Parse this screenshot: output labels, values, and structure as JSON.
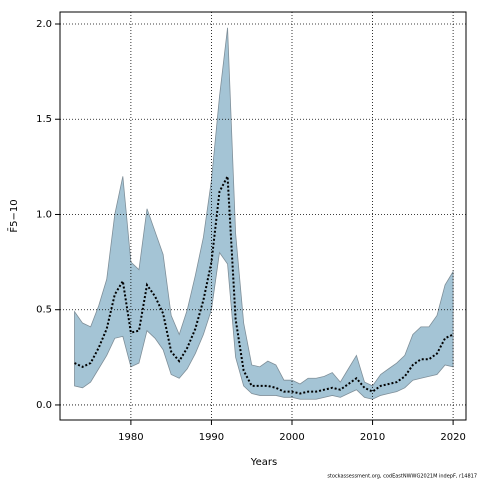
{
  "chart_data": {
    "type": "line",
    "x_label": "Years",
    "y_label": "F̄5−10",
    "footnote": "stockassessment.org, codEastNWWG2021M indepF, r14817",
    "x": [
      1973,
      1974,
      1975,
      1976,
      1977,
      1978,
      1979,
      1980,
      1981,
      1982,
      1983,
      1984,
      1985,
      1986,
      1987,
      1988,
      1989,
      1990,
      1991,
      1992,
      1993,
      1994,
      1995,
      1996,
      1997,
      1998,
      1999,
      2000,
      2001,
      2002,
      2003,
      2004,
      2005,
      2006,
      2007,
      2008,
      2009,
      2010,
      2011,
      2012,
      2013,
      2014,
      2015,
      2016,
      2017,
      2018,
      2019,
      2020
    ],
    "series": [
      {
        "color": "#000000",
        "values": [
          0.22,
          0.2,
          0.22,
          0.3,
          0.4,
          0.58,
          0.65,
          0.38,
          0.39,
          0.63,
          0.57,
          0.48,
          0.28,
          0.23,
          0.3,
          0.4,
          0.55,
          0.75,
          1.12,
          1.2,
          0.45,
          0.18,
          0.1,
          0.1,
          0.1,
          0.09,
          0.07,
          0.07,
          0.06,
          0.07,
          0.07,
          0.08,
          0.09,
          0.08,
          0.11,
          0.14,
          0.09,
          0.07,
          0.1,
          0.11,
          0.12,
          0.15,
          0.21,
          0.24,
          0.24,
          0.27,
          0.35,
          0.37
        ]
      }
    ],
    "band": {
      "color": "#a4c4d5",
      "edge": "#7f8f99",
      "upper": [
        0.49,
        0.43,
        0.41,
        0.52,
        0.66,
        1.0,
        1.2,
        0.75,
        0.71,
        1.03,
        0.91,
        0.79,
        0.47,
        0.37,
        0.5,
        0.68,
        0.88,
        1.18,
        1.62,
        1.98,
        0.9,
        0.43,
        0.21,
        0.2,
        0.23,
        0.21,
        0.13,
        0.13,
        0.11,
        0.14,
        0.14,
        0.15,
        0.17,
        0.12,
        0.19,
        0.26,
        0.12,
        0.1,
        0.16,
        0.19,
        0.22,
        0.26,
        0.37,
        0.41,
        0.41,
        0.47,
        0.63,
        0.7
      ],
      "lower": [
        0.1,
        0.09,
        0.12,
        0.19,
        0.26,
        0.35,
        0.36,
        0.2,
        0.22,
        0.39,
        0.35,
        0.29,
        0.16,
        0.14,
        0.19,
        0.27,
        0.37,
        0.5,
        0.8,
        0.74,
        0.25,
        0.1,
        0.06,
        0.05,
        0.05,
        0.05,
        0.04,
        0.04,
        0.03,
        0.03,
        0.03,
        0.04,
        0.05,
        0.04,
        0.06,
        0.08,
        0.04,
        0.03,
        0.05,
        0.06,
        0.07,
        0.09,
        0.13,
        0.14,
        0.15,
        0.16,
        0.21,
        0.2
      ]
    },
    "xlim": [
      1971.2,
      2021.6
    ],
    "ylim": [
      -0.079,
      2.063
    ],
    "xticks": [
      1980,
      1990,
      2000,
      2010,
      2020
    ],
    "yticks": [
      {
        "value": 0,
        "label": "0.0"
      },
      0.5,
      {
        "value": 1,
        "label": "1.0"
      },
      1.5,
      {
        "value": 2,
        "label": "2.0"
      }
    ],
    "grid": true
  }
}
